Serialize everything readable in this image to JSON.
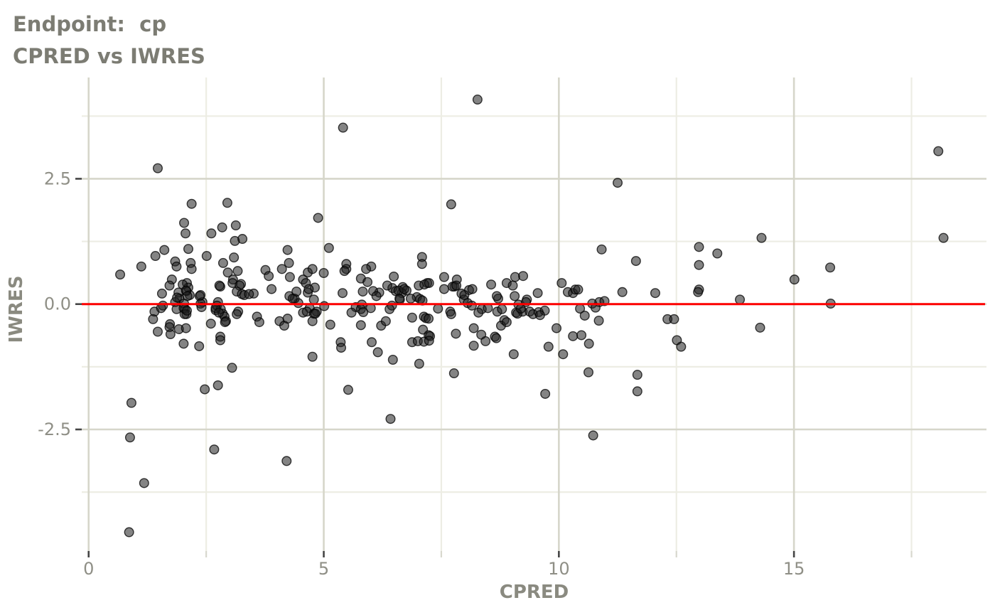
{
  "title": "Endpoint:  cp",
  "subtitle": "CPRED vs IWRES",
  "chart_data": {
    "type": "scatter",
    "title": "Endpoint:  cp",
    "subtitle": "CPRED vs IWRES",
    "xlabel": "CPRED",
    "ylabel": "IWRES",
    "xlim": [
      -0.147,
      19.094
    ],
    "ylim": [
      -4.925,
      4.52
    ],
    "grid": true,
    "legend": "none",
    "x_ticks_major": [
      0,
      5,
      10,
      15
    ],
    "x_tick_labels": [
      "0",
      "5",
      "10",
      "15"
    ],
    "x_ticks_minor": [
      2.5,
      7.5,
      12.5,
      17.5
    ],
    "y_ticks_major": [
      2.5,
      0.0,
      -2.5
    ],
    "y_tick_labels": [
      "2.5",
      "0.0",
      "-2.5"
    ],
    "y_ticks_minor": [
      3.75,
      1.25,
      -1.25,
      -3.75
    ],
    "reference_line": {
      "type": "hline",
      "y": 0,
      "color": "#fd0000"
    },
    "colors": {
      "title": "#7c7c73",
      "axis_title": "#8a8a80",
      "tick_label": "#8f8f86",
      "tick_mark": "#454545",
      "minor_tick_mark": "#d8d8ce",
      "grid_major": "#d6d6ca",
      "grid_minor": "#edede4",
      "point_fill": "#1f1f1f",
      "point_stroke": "#000000",
      "hline": "#fd0000",
      "background": "#ffffff"
    },
    "points": [
      [
        1.47,
        2.71
      ],
      [
        2.19,
        2.0
      ],
      [
        2.95,
        2.02
      ],
      [
        2.03,
        1.62
      ],
      [
        2.06,
        1.41
      ],
      [
        2.61,
        1.41
      ],
      [
        2.84,
        1.53
      ],
      [
        3.13,
        1.57
      ],
      [
        3.11,
        1.26
      ],
      [
        3.27,
        1.3
      ],
      [
        2.12,
        1.1
      ],
      [
        1.61,
        1.08
      ],
      [
        1.42,
        0.96
      ],
      [
        1.84,
        0.85
      ],
      [
        1.87,
        0.75
      ],
      [
        2.17,
        0.82
      ],
      [
        2.19,
        0.7
      ],
      [
        1.12,
        0.75
      ],
      [
        0.67,
        0.59
      ],
      [
        2.51,
        0.96
      ],
      [
        2.86,
        0.82
      ],
      [
        3.09,
        0.93
      ],
      [
        2.96,
        0.63
      ],
      [
        3.17,
        0.66
      ],
      [
        3.24,
        0.4
      ],
      [
        3.07,
        0.49
      ],
      [
        2.8,
        0.35
      ],
      [
        1.77,
        0.49
      ],
      [
        1.72,
        0.37
      ],
      [
        1.56,
        0.21
      ],
      [
        1.91,
        0.23
      ],
      [
        1.93,
        0.11
      ],
      [
        2.09,
        0.42
      ],
      [
        2.12,
        0.33
      ],
      [
        2.08,
        0.26
      ],
      [
        2.15,
        0.18
      ],
      [
        2.38,
        0.18
      ],
      [
        2.42,
        0.04
      ],
      [
        1.84,
        0.04
      ],
      [
        1.58,
        -0.03
      ],
      [
        2.75,
        0.04
      ],
      [
        2.7,
        -0.12
      ],
      [
        2.85,
        -0.19
      ],
      [
        3.18,
        -0.15
      ],
      [
        3.51,
        0.21
      ],
      [
        3.76,
        0.68
      ],
      [
        3.83,
        0.56
      ],
      [
        4.11,
        0.7
      ],
      [
        4.23,
        1.08
      ],
      [
        4.26,
        0.82
      ],
      [
        4.28,
        0.54
      ],
      [
        4.56,
        0.49
      ],
      [
        4.66,
        0.63
      ],
      [
        4.76,
        0.7
      ],
      [
        4.81,
        0.33
      ],
      [
        4.66,
        0.23
      ],
      [
        4.79,
        0.09
      ],
      [
        4.46,
        0.02
      ],
      [
        4.38,
        0.11
      ],
      [
        4.88,
        1.72
      ],
      [
        1.4,
        -0.15
      ],
      [
        1.37,
        -0.3
      ],
      [
        1.73,
        -0.4
      ],
      [
        1.88,
        0.13
      ],
      [
        2.0,
        0.39
      ],
      [
        2.07,
        0.27
      ],
      [
        2.1,
        0.16
      ],
      [
        2.03,
        0.01
      ],
      [
        2.05,
        -0.1
      ],
      [
        2.08,
        -0.2
      ],
      [
        2.36,
        0.16
      ],
      [
        2.38,
        0.01
      ],
      [
        2.78,
        0.37
      ],
      [
        2.73,
        -0.03
      ],
      [
        2.81,
        -0.1
      ],
      [
        2.89,
        -0.25
      ],
      [
        3.06,
        0.42
      ],
      [
        3.21,
        0.37
      ],
      [
        3.15,
        0.25
      ],
      [
        3.26,
        0.2
      ],
      [
        3.31,
        0.18
      ],
      [
        3.41,
        0.2
      ],
      [
        3.89,
        0.3
      ],
      [
        4.27,
        0.16
      ],
      [
        4.34,
        0.11
      ],
      [
        4.42,
        0.25
      ],
      [
        4.62,
        0.42
      ],
      [
        4.68,
        0.3
      ],
      [
        4.7,
        -0.08
      ],
      [
        4.85,
        -0.15
      ],
      [
        5.68,
        -0.06
      ],
      [
        5.81,
        -0.01
      ],
      [
        5.83,
        0.25
      ],
      [
        6.18,
        0.23
      ],
      [
        6.46,
        0.32
      ],
      [
        6.45,
        -0.03
      ],
      [
        1.54,
        -0.08
      ],
      [
        1.87,
        -0.1
      ],
      [
        2.02,
        -0.08
      ],
      [
        2.04,
        -0.2
      ],
      [
        2.09,
        -0.13
      ],
      [
        2.4,
        -0.06
      ],
      [
        2.7,
        -0.08
      ],
      [
        2.77,
        -0.17
      ],
      [
        2.92,
        -0.34
      ],
      [
        3.15,
        -0.2
      ],
      [
        3.58,
        -0.25
      ],
      [
        3.63,
        -0.36
      ],
      [
        4.06,
        -0.34
      ],
      [
        4.16,
        -0.43
      ],
      [
        4.23,
        -0.29
      ],
      [
        4.56,
        -0.17
      ],
      [
        4.64,
        -0.15
      ],
      [
        4.79,
        -0.19
      ],
      [
        4.76,
        -0.34
      ],
      [
        1.47,
        -0.55
      ],
      [
        1.72,
        -0.46
      ],
      [
        1.74,
        -0.6
      ],
      [
        1.92,
        -0.5
      ],
      [
        2.07,
        -0.48
      ],
      [
        2.6,
        -0.39
      ],
      [
        2.8,
        -0.65
      ],
      [
        2.8,
        -0.72
      ],
      [
        2.9,
        -0.36
      ],
      [
        2.02,
        -0.79
      ],
      [
        2.35,
        -0.84
      ],
      [
        4.76,
        -1.05
      ],
      [
        3.05,
        -1.27
      ],
      [
        2.47,
        -1.7
      ],
      [
        2.75,
        -1.62
      ],
      [
        0.91,
        -1.97
      ],
      [
        0.88,
        -2.66
      ],
      [
        2.67,
        -2.9
      ],
      [
        4.21,
        -3.13
      ],
      [
        1.18,
        -3.57
      ],
      [
        0.86,
        -4.55
      ],
      [
        8.27,
        4.08
      ],
      [
        5.41,
        3.52
      ],
      [
        7.71,
        1.99
      ],
      [
        5.11,
        1.12
      ],
      [
        7.09,
        0.94
      ],
      [
        7.09,
        0.8
      ],
      [
        5.48,
        0.8
      ],
      [
        5.48,
        0.7
      ],
      [
        6.01,
        0.75
      ],
      [
        5.9,
        0.7
      ],
      [
        5.0,
        0.62
      ],
      [
        5.44,
        0.66
      ],
      [
        5.79,
        0.51
      ],
      [
        5.93,
        0.44
      ],
      [
        6.49,
        0.55
      ],
      [
        6.35,
        0.37
      ],
      [
        6.68,
        0.34
      ],
      [
        6.76,
        0.27
      ],
      [
        6.66,
        0.22
      ],
      [
        6.53,
        0.26
      ],
      [
        6.05,
        0.26
      ],
      [
        6.12,
        0.16
      ],
      [
        5.4,
        0.22
      ],
      [
        7.02,
        0.37
      ],
      [
        7.2,
        0.42
      ],
      [
        6.98,
        0.14
      ],
      [
        7.05,
        0.1
      ],
      [
        7.1,
        0.07
      ],
      [
        6.85,
        0.11
      ],
      [
        6.62,
        0.09
      ],
      [
        7.56,
        0.54
      ],
      [
        7.83,
        0.49
      ],
      [
        7.78,
        0.35
      ],
      [
        7.56,
        0.3
      ],
      [
        7.93,
        0.21
      ],
      [
        8.09,
        0.28
      ],
      [
        8.16,
        0.3
      ],
      [
        7.98,
        0.09
      ],
      [
        8.06,
        0.02
      ],
      [
        8.56,
        0.39
      ],
      [
        8.71,
        0.11
      ],
      [
        8.89,
        0.42
      ],
      [
        9.02,
        0.37
      ],
      [
        9.07,
        0.54
      ],
      [
        9.24,
        0.56
      ],
      [
        9.14,
        -0.01
      ],
      [
        9.32,
        0.09
      ],
      [
        9.55,
        0.22
      ],
      [
        6.59,
        0.27
      ],
      [
        6.71,
        0.3
      ],
      [
        6.61,
        0.11
      ],
      [
        7.14,
        0.39
      ],
      [
        7.24,
        0.42
      ],
      [
        7.74,
        0.35
      ],
      [
        7.69,
        -0.15
      ],
      [
        7.82,
        0.37
      ],
      [
        7.99,
        0.18
      ],
      [
        8.15,
        -0.03
      ],
      [
        8.68,
        0.16
      ],
      [
        9.06,
        0.16
      ],
      [
        9.3,
        0.04
      ],
      [
        9.23,
        -0.15
      ],
      [
        9.38,
        -0.15
      ],
      [
        10.71,
        0.01
      ],
      [
        10.86,
        0.04
      ],
      [
        10.97,
        0.06
      ],
      [
        4.82,
        -0.19
      ],
      [
        5.14,
        -0.41
      ],
      [
        5.01,
        -0.04
      ],
      [
        5.59,
        -0.17
      ],
      [
        5.79,
        -0.1
      ],
      [
        5.84,
        -0.16
      ],
      [
        6.0,
        -0.08
      ],
      [
        5.79,
        -0.42
      ],
      [
        6.22,
        -0.43
      ],
      [
        6.32,
        -0.34
      ],
      [
        6.4,
        -0.1
      ],
      [
        6.88,
        -0.27
      ],
      [
        7.13,
        -0.25
      ],
      [
        7.17,
        -0.28
      ],
      [
        7.23,
        -0.29
      ],
      [
        7.43,
        -0.09
      ],
      [
        7.71,
        -0.2
      ],
      [
        7.11,
        -0.51
      ],
      [
        7.23,
        -0.62
      ],
      [
        7.26,
        -0.64
      ],
      [
        6.88,
        -0.76
      ],
      [
        7.0,
        -0.74
      ],
      [
        7.13,
        -0.75
      ],
      [
        7.24,
        -0.73
      ],
      [
        7.81,
        -0.59
      ],
      [
        8.19,
        -0.48
      ],
      [
        8.19,
        -0.83
      ],
      [
        8.35,
        -0.61
      ],
      [
        8.44,
        -0.74
      ],
      [
        8.64,
        -0.65
      ],
      [
        8.67,
        -0.68
      ],
      [
        8.36,
        -0.1
      ],
      [
        8.29,
        -0.17
      ],
      [
        8.49,
        -0.08
      ],
      [
        8.69,
        -0.15
      ],
      [
        8.79,
        -0.1
      ],
      [
        8.84,
        -0.32
      ],
      [
        8.77,
        -0.43
      ],
      [
        8.89,
        -0.36
      ],
      [
        9.09,
        -0.17
      ],
      [
        9.12,
        -0.19
      ],
      [
        9.19,
        -0.09
      ],
      [
        9.04,
        -1.0
      ],
      [
        9.45,
        -0.2
      ],
      [
        9.57,
        -0.16
      ],
      [
        7.77,
        -1.38
      ],
      [
        5.52,
        -1.71
      ],
      [
        6.42,
        -2.29
      ],
      [
        5.36,
        -0.76
      ],
      [
        5.37,
        -0.87
      ],
      [
        6.02,
        -0.76
      ],
      [
        6.15,
        -0.96
      ],
      [
        6.47,
        -1.11
      ],
      [
        7.03,
        -1.19
      ],
      [
        11.25,
        2.42
      ],
      [
        14.31,
        1.32
      ],
      [
        10.91,
        1.09
      ],
      [
        11.64,
        0.86
      ],
      [
        12.98,
        1.14
      ],
      [
        13.37,
        1.01
      ],
      [
        12.98,
        0.78
      ],
      [
        10.06,
        0.42
      ],
      [
        10.19,
        0.24
      ],
      [
        10.3,
        0.22
      ],
      [
        10.35,
        0.29
      ],
      [
        10.41,
        0.29
      ],
      [
        11.35,
        0.24
      ],
      [
        12.05,
        0.22
      ],
      [
        12.98,
        0.29
      ],
      [
        12.96,
        0.24
      ],
      [
        13.85,
        0.09
      ],
      [
        9.7,
        -0.13
      ],
      [
        9.6,
        -0.22
      ],
      [
        10.45,
        -0.09
      ],
      [
        10.55,
        -0.23
      ],
      [
        10.78,
        -0.07
      ],
      [
        10.85,
        -0.33
      ],
      [
        9.95,
        -0.48
      ],
      [
        10.3,
        -0.64
      ],
      [
        10.48,
        -0.62
      ],
      [
        9.78,
        -0.85
      ],
      [
        10.09,
        -1.0
      ],
      [
        10.64,
        -0.79
      ],
      [
        12.31,
        -0.3
      ],
      [
        12.45,
        -0.3
      ],
      [
        12.51,
        -0.72
      ],
      [
        12.6,
        -0.85
      ],
      [
        14.28,
        -0.47
      ],
      [
        10.63,
        -1.36
      ],
      [
        11.67,
        -1.41
      ],
      [
        11.67,
        -1.74
      ],
      [
        9.71,
        -1.79
      ],
      [
        10.73,
        -2.62
      ],
      [
        18.07,
        3.05
      ],
      [
        18.18,
        1.32
      ],
      [
        15.77,
        0.73
      ],
      [
        15.01,
        0.49
      ],
      [
        15.78,
        0.01
      ]
    ]
  }
}
